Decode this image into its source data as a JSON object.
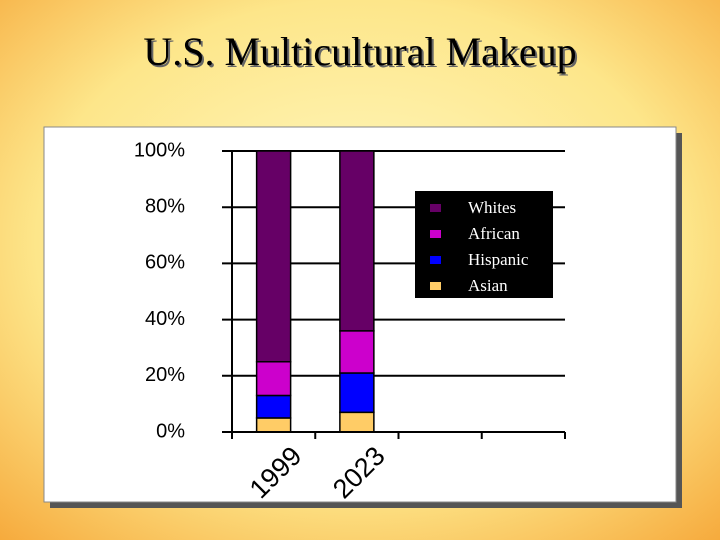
{
  "chart_data": {
    "type": "stacked_bar",
    "title": "U.S. Multicultural Makeup",
    "categories": [
      "1999",
      "2023",
      null,
      null
    ],
    "series": [
      {
        "name": "Whites",
        "color": "#660066",
        "values": [
          75,
          64,
          null,
          null
        ]
      },
      {
        "name": "African",
        "color": "#cc00cc",
        "values": [
          12,
          15,
          null,
          null
        ]
      },
      {
        "name": "Hispanic",
        "color": "#0000ff",
        "values": [
          8,
          14,
          null,
          null
        ]
      },
      {
        "name": "Asian",
        "color": "#ffcc66",
        "values": [
          5,
          7,
          null,
          null
        ]
      }
    ],
    "ylim": [
      0,
      100
    ],
    "yticks": [
      {
        "value": 0,
        "label": "0%"
      },
      {
        "value": 20,
        "label": "20%"
      },
      {
        "value": 40,
        "label": "40%"
      },
      {
        "value": 60,
        "label": "60%"
      },
      {
        "value": 80,
        "label": "80%"
      },
      {
        "value": 100,
        "label": "100%"
      }
    ],
    "grid": true,
    "legend": "upper right"
  }
}
